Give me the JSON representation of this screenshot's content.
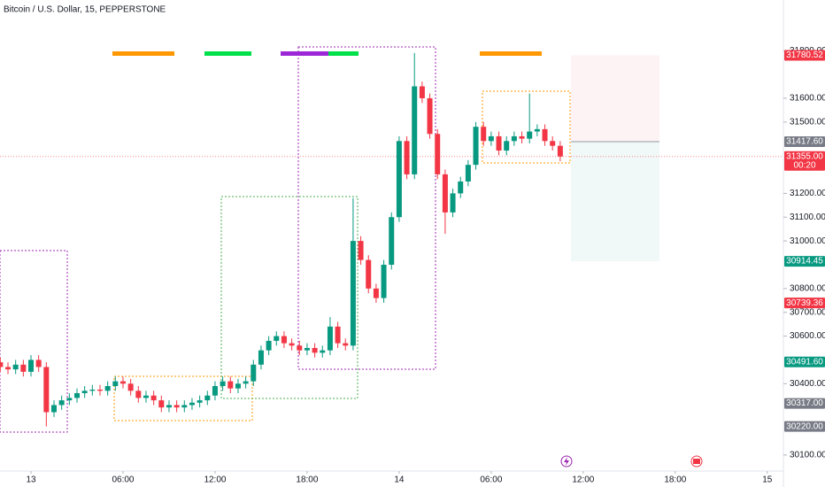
{
  "chart_data": {
    "type": "candlestick",
    "title": "Bitcoin / U.S. Dollar, 15, PEPPERSTONE",
    "up_color": "#089981",
    "down_color": "#f23645",
    "x": [
      -2,
      -1.5,
      -1,
      -0.5,
      0,
      0.5,
      1,
      1.5,
      2,
      2.5,
      3,
      3.5,
      4,
      4.5,
      5,
      5.5,
      6,
      6.5,
      7,
      7.5,
      8,
      8.5,
      9,
      9.5,
      10,
      10.5,
      11,
      11.5,
      12,
      12.5,
      13,
      13.5,
      14,
      14.5,
      15,
      15.5,
      16,
      16.5,
      17,
      17.5,
      18,
      18.5,
      19,
      19.5,
      20,
      20.5,
      21,
      21.5,
      22,
      22.5,
      23,
      23.5,
      24,
      24.5,
      25,
      25.5,
      26,
      26.5,
      27,
      27.5,
      28,
      28.5,
      29,
      29.5,
      30,
      30.5,
      31,
      31.5,
      32,
      32.5,
      33,
      33.5,
      34,
      34.5
    ],
    "open": [
      30490,
      30470,
      30460,
      30480,
      30450,
      30500,
      30470,
      30280,
      30310,
      30330,
      30340,
      30360,
      30370,
      30375,
      30370,
      30390,
      30410,
      30400,
      30370,
      30340,
      30350,
      30330,
      30300,
      30310,
      30300,
      30310,
      30320,
      30330,
      30350,
      30390,
      30410,
      30380,
      30400,
      30410,
      30480,
      30540,
      30580,
      30600,
      30570,
      30560,
      30540,
      30550,
      30530,
      30540,
      30640,
      30570,
      30560,
      31000,
      30920,
      30800,
      30760,
      30900,
      31100,
      31420,
      31280,
      31650,
      31600,
      31450,
      31280,
      31120,
      31200,
      31250,
      31320,
      31480,
      31420,
      31440,
      31380,
      31420,
      31440,
      31430,
      31460,
      31470,
      31420,
      31400
    ],
    "high": [
      30510,
      30490,
      30500,
      30500,
      30520,
      30520,
      30490,
      30330,
      30350,
      30360,
      30380,
      30390,
      30395,
      30395,
      30410,
      30430,
      30430,
      30420,
      30390,
      30370,
      30370,
      30350,
      30330,
      30330,
      30330,
      30340,
      30350,
      30370,
      30410,
      30430,
      30430,
      30420,
      30430,
      30500,
      30560,
      30600,
      30620,
      30620,
      30590,
      30580,
      30570,
      30570,
      30560,
      30680,
      30660,
      30590,
      31180,
      31020,
      30940,
      30820,
      30920,
      31120,
      31440,
      31440,
      31790,
      31670,
      31620,
      31470,
      31300,
      31220,
      31270,
      31340,
      31500,
      31500,
      31460,
      31460,
      31440,
      31460,
      31460,
      31620,
      31490,
      31490,
      31440,
      31420
    ],
    "low": [
      30450,
      30440,
      30440,
      30430,
      30430,
      30450,
      30220,
      30260,
      30290,
      30310,
      30320,
      30340,
      30350,
      30350,
      30350,
      30370,
      30380,
      30350,
      30320,
      30320,
      30310,
      30280,
      30280,
      30280,
      30280,
      30290,
      30300,
      30310,
      30330,
      30370,
      30360,
      30360,
      30380,
      30390,
      30460,
      30520,
      30560,
      30550,
      30540,
      30520,
      30520,
      30510,
      30510,
      30520,
      30550,
      30540,
      30540,
      30900,
      30780,
      30740,
      30740,
      30880,
      31080,
      31260,
      31260,
      31580,
      31430,
      31260,
      31030,
      31100,
      31180,
      31230,
      31300,
      31400,
      31400,
      31360,
      31360,
      31400,
      31410,
      31410,
      31440,
      31400,
      31380,
      31335
    ],
    "close": [
      30470,
      30460,
      30480,
      30450,
      30500,
      30470,
      30280,
      30310,
      30330,
      30340,
      30360,
      30370,
      30375,
      30370,
      30390,
      30410,
      30400,
      30370,
      30340,
      30350,
      30330,
      30300,
      30310,
      30300,
      30310,
      30320,
      30330,
      30350,
      30390,
      30410,
      30380,
      30400,
      30410,
      30480,
      30540,
      30580,
      30600,
      30570,
      30560,
      30540,
      30550,
      30530,
      30540,
      30640,
      30570,
      30560,
      31000,
      30920,
      30800,
      30760,
      30900,
      31100,
      31420,
      31280,
      31650,
      31600,
      31450,
      31280,
      31120,
      31200,
      31250,
      31320,
      31480,
      31420,
      31440,
      31380,
      31420,
      31440,
      31430,
      31460,
      31470,
      31420,
      31400,
      31355
    ],
    "xlim": [
      -2.02,
      49.05
    ],
    "xticks": [
      {
        "value": 0,
        "label": "13"
      },
      {
        "value": 6,
        "label": "06:00"
      },
      {
        "value": 12,
        "label": "12:00"
      },
      {
        "value": 18,
        "label": "18:00"
      },
      {
        "value": 24,
        "label": "14"
      },
      {
        "value": 30,
        "label": "06:00"
      },
      {
        "value": 36,
        "label": "12:00"
      },
      {
        "value": 42,
        "label": "18:00"
      },
      {
        "value": 48,
        "label": "15"
      }
    ],
    "ylim": [
      30040,
      32013
    ],
    "yticks": [
      {
        "value": 31800,
        "label": "31800.00"
      },
      {
        "value": 31600,
        "label": "31600.00"
      },
      {
        "value": 31500,
        "label": "31500.00"
      },
      {
        "value": 31200,
        "label": "31200.00"
      },
      {
        "value": 31100,
        "label": "31100.00"
      },
      {
        "value": 31000,
        "label": "31000.00"
      },
      {
        "value": 30800,
        "label": "30800.00"
      },
      {
        "value": 30700,
        "label": "30700.00"
      },
      {
        "value": 30600,
        "label": "30600.00"
      },
      {
        "value": 30400,
        "label": "30400.00"
      },
      {
        "value": 30100,
        "label": "30100.00"
      }
    ],
    "price_labels": [
      {
        "value": 31780.52,
        "label": "31780.52",
        "color": "#f23645"
      },
      {
        "value": 31417.6,
        "label": "31417.60",
        "color": "#787b86"
      },
      {
        "value": 31355,
        "label": "31355.00",
        "color": "#f23645"
      },
      {
        "value": 30914.45,
        "label": "30914.45",
        "color": "#089981"
      },
      {
        "value": 30739.36,
        "label": "30739.36",
        "color": "#f23645"
      },
      {
        "value": 30491.6,
        "label": "30491.60",
        "color": "#089981"
      },
      {
        "value": 30317,
        "label": "30317.00",
        "color": "#787b86"
      },
      {
        "value": 30220,
        "label": "30220.00",
        "color": "#787b86"
      }
    ],
    "countdown": "00:20"
  }
}
